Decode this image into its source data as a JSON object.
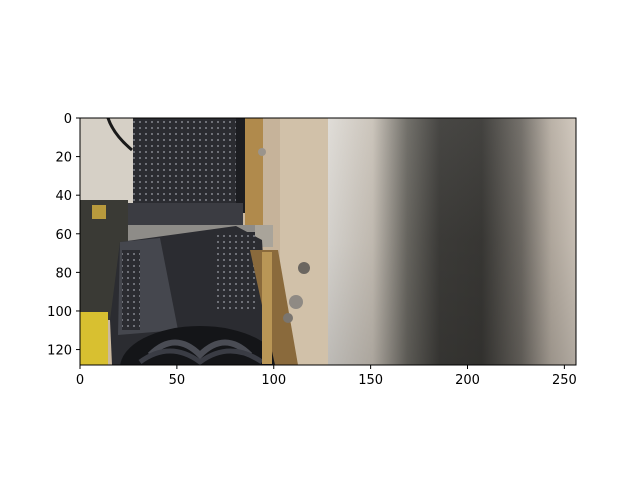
{
  "image_axes": {
    "x_ticks": [
      0,
      50,
      100,
      150,
      200,
      250
    ],
    "y_ticks": [
      0,
      20,
      40,
      60,
      80,
      100,
      120
    ],
    "x_range": [
      0,
      256
    ],
    "y_range": [
      0,
      128
    ],
    "y_inverted": true
  },
  "image_content": {
    "left_panel": "photo-rotated-graphics-card-on-wooden-surface",
    "right_panel": "blurred-photo",
    "colors": {
      "wood": "#cbb9a0",
      "gpu_body": "#2b2c31",
      "gpu_dark": "#1b1c20",
      "pcb_gold": "#b08a4c",
      "yellow_block": "#d8c030",
      "blur_light": "#cfc9c1",
      "blur_dark": "#3c3a37"
    }
  }
}
